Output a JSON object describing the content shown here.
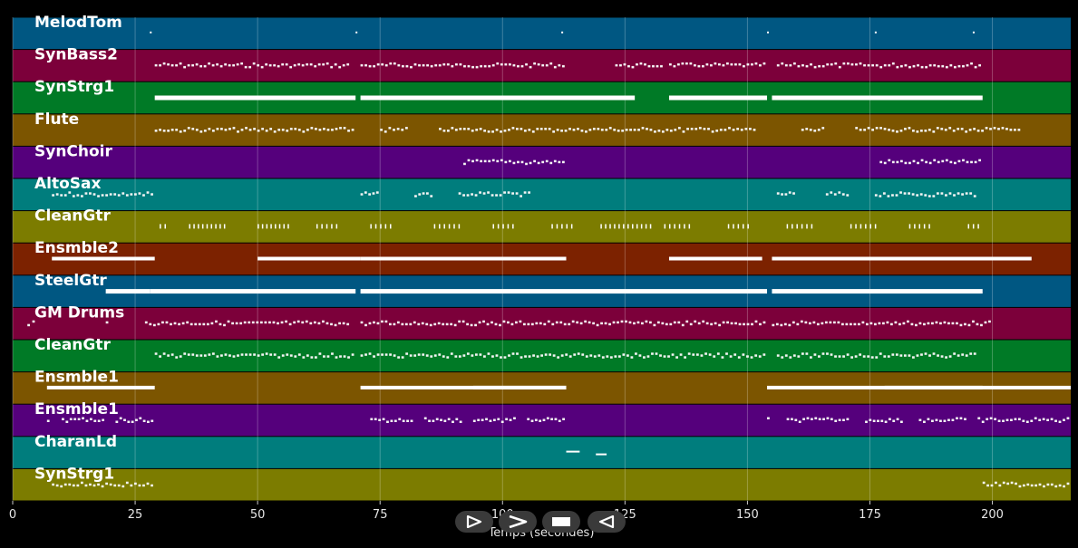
{
  "chart_data": {
    "type": "piano-roll",
    "xlabel": "Temps (secondes)",
    "xlim": [
      0,
      216
    ],
    "xticks": [
      0,
      25,
      50,
      75,
      100,
      125,
      150,
      175,
      200
    ],
    "grid": true,
    "tracks": [
      {
        "name": "MelodTom",
        "color": "#005782",
        "style": "dots",
        "segments": [
          [
            28,
            29
          ],
          [
            70,
            71
          ],
          [
            112,
            113
          ],
          [
            154,
            155
          ],
          [
            176,
            177
          ],
          [
            196,
            197
          ]
        ]
      },
      {
        "name": "SynBass2",
        "color": "#7c003a",
        "style": "dense",
        "segments": [
          [
            29,
            69
          ],
          [
            71,
            113
          ],
          [
            123,
            133
          ],
          [
            134,
            154
          ],
          [
            156,
            198
          ]
        ]
      },
      {
        "name": "SynStrg1",
        "color": "#007a26",
        "style": "thick",
        "segments": [
          [
            29,
            70
          ],
          [
            71,
            127
          ],
          [
            134,
            154
          ],
          [
            155,
            198
          ]
        ]
      },
      {
        "name": "Flute",
        "color": "#7c5500",
        "style": "dense",
        "segments": [
          [
            29,
            70
          ],
          [
            75,
            81
          ],
          [
            87,
            135
          ],
          [
            135,
            152
          ],
          [
            161,
            166
          ],
          [
            172,
            206
          ]
        ]
      },
      {
        "name": "SynChoir",
        "color": "#55007c",
        "style": "dense",
        "segments": [
          [
            92,
            113
          ],
          [
            177,
            198
          ]
        ]
      },
      {
        "name": "AltoSax",
        "color": "#007d7d",
        "style": "dense",
        "segments": [
          [
            8,
            29
          ],
          [
            71,
            75
          ],
          [
            82,
            86
          ],
          [
            91,
            106
          ],
          [
            156,
            160
          ],
          [
            166,
            171
          ],
          [
            176,
            197
          ]
        ]
      },
      {
        "name": "CleanGtr",
        "color": "#7c7c00",
        "style": "ticks",
        "segments": [
          [
            30,
            32
          ],
          [
            36,
            44
          ],
          [
            50,
            57
          ],
          [
            62,
            67
          ],
          [
            73,
            78
          ],
          [
            86,
            92
          ],
          [
            98,
            103
          ],
          [
            110,
            115
          ],
          [
            120,
            131
          ],
          [
            133,
            139
          ],
          [
            146,
            151
          ],
          [
            158,
            164
          ],
          [
            171,
            177
          ],
          [
            183,
            188
          ],
          [
            195,
            198
          ]
        ]
      },
      {
        "name": "Ensmble2",
        "color": "#7c2200",
        "style": "blocks",
        "segments": [
          [
            8,
            29
          ],
          [
            50,
            71
          ],
          [
            71,
            113
          ],
          [
            134,
            153
          ],
          [
            155,
            208
          ]
        ]
      },
      {
        "name": "SteelGtr",
        "color": "#005782",
        "style": "thick",
        "segments": [
          [
            19,
            28
          ],
          [
            28,
            70
          ],
          [
            71,
            154
          ],
          [
            155,
            198
          ]
        ]
      },
      {
        "name": "GM Drums",
        "color": "#7c003a",
        "style": "dense",
        "segments": [
          [
            3,
            5
          ],
          [
            19,
            20
          ],
          [
            27,
            69
          ],
          [
            71,
            154
          ],
          [
            155,
            200
          ]
        ]
      },
      {
        "name": "CleanGtr",
        "color": "#007a26",
        "style": "dense",
        "segments": [
          [
            29,
            70
          ],
          [
            71,
            137
          ],
          [
            137,
            154
          ],
          [
            156,
            197
          ]
        ]
      },
      {
        "name": "Ensmble1",
        "color": "#7c5500",
        "style": "blocks",
        "segments": [
          [
            7,
            29
          ],
          [
            71,
            113
          ],
          [
            94,
            113
          ],
          [
            154,
            216
          ],
          [
            178,
            198
          ]
        ]
      },
      {
        "name": "Ensmble1",
        "color": "#55007c",
        "style": "dense",
        "segments": [
          [
            7,
            8
          ],
          [
            10,
            19
          ],
          [
            21,
            29
          ],
          [
            73,
            82
          ],
          [
            84,
            92
          ],
          [
            94,
            103
          ],
          [
            105,
            113
          ],
          [
            154,
            155
          ],
          [
            158,
            171
          ],
          [
            174,
            182
          ],
          [
            185,
            195
          ],
          [
            197,
            216
          ]
        ]
      },
      {
        "name": "CharanLd",
        "color": "#007d7d",
        "style": "dots",
        "segments": [
          [
            113,
            124
          ]
        ]
      },
      {
        "name": "SynStrg1",
        "color": "#7c7c00",
        "style": "dense",
        "segments": [
          [
            8,
            29
          ],
          [
            198,
            216
          ]
        ]
      }
    ]
  },
  "controls": {
    "play_label": "Play",
    "next_label": "Next",
    "stop_label": "Stop",
    "prev_label": "Previous"
  }
}
